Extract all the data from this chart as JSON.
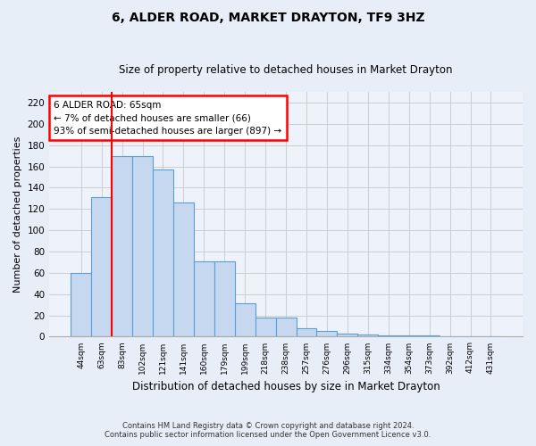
{
  "title": "6, ALDER ROAD, MARKET DRAYTON, TF9 3HZ",
  "subtitle": "Size of property relative to detached houses in Market Drayton",
  "xlabel": "Distribution of detached houses by size in Market Drayton",
  "ylabel": "Number of detached properties",
  "categories": [
    "44sqm",
    "63sqm",
    "83sqm",
    "102sqm",
    "121sqm",
    "141sqm",
    "160sqm",
    "179sqm",
    "199sqm",
    "218sqm",
    "238sqm",
    "257sqm",
    "276sqm",
    "296sqm",
    "315sqm",
    "334sqm",
    "354sqm",
    "373sqm",
    "392sqm",
    "412sqm",
    "431sqm"
  ],
  "values": [
    60,
    131,
    170,
    170,
    157,
    126,
    71,
    71,
    31,
    18,
    18,
    8,
    5,
    3,
    2,
    1,
    1,
    1,
    0,
    0,
    0
  ],
  "bar_color": "#c5d8f0",
  "bar_edge_color": "#5a9fd4",
  "red_line_index": 1,
  "annotation_text": "6 ALDER ROAD: 65sqm\n← 7% of detached houses are smaller (66)\n93% of semi-detached houses are larger (897) →",
  "ylim": [
    0,
    230
  ],
  "yticks": [
    0,
    20,
    40,
    60,
    80,
    100,
    120,
    140,
    160,
    180,
    200,
    220
  ],
  "footnote1": "Contains HM Land Registry data © Crown copyright and database right 2024.",
  "footnote2": "Contains public sector information licensed under the Open Government Licence v3.0.",
  "bg_color": "#e8eef8",
  "plot_bg_color": "#eef2fa",
  "grid_color": "#c8c8c8",
  "title_fontsize": 10,
  "subtitle_fontsize": 8.5,
  "ylabel_fontsize": 8,
  "xlabel_fontsize": 8.5
}
